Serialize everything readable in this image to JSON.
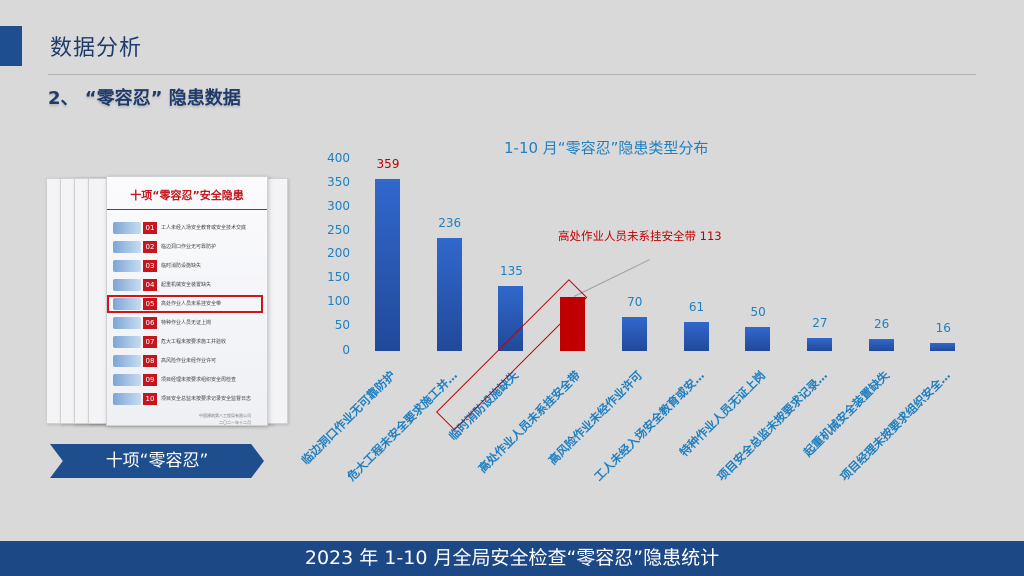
{
  "header": {
    "page_title": "数据分析",
    "section_title": "2、 “零容忍” 隐患数据",
    "accent_color": "#1f4e8f"
  },
  "poster": {
    "title": "十项“零容忍”安全隐患",
    "items": [
      {
        "num": "01",
        "text": "工人未经入场安全教育或安全技术交底"
      },
      {
        "num": "02",
        "text": "临边洞口作业无可靠防护"
      },
      {
        "num": "03",
        "text": "临时消防设施缺失"
      },
      {
        "num": "04",
        "text": "起重机械安全装置缺失"
      },
      {
        "num": "05",
        "text": "高处作业人员未系挂安全带",
        "highlighted": true
      },
      {
        "num": "06",
        "text": "特种作业人员无证上岗"
      },
      {
        "num": "07",
        "text": "危大工程未按要求施工并验收"
      },
      {
        "num": "08",
        "text": "高风险作业未经作业许可"
      },
      {
        "num": "09",
        "text": "项目经理未按要求组织安全周检查"
      },
      {
        "num": "10",
        "text": "项目安全总监未按要求记录安全监督日志"
      }
    ],
    "footer_line1": "中国建筑第八工程局有限公司",
    "footer_line2": "二〇二一年十二月"
  },
  "banner": {
    "label": "十项“零容忍”"
  },
  "chart": {
    "title": "1-10 月“零容忍”隐患类型分布",
    "callout": "高处作业人员未系挂安全带  113",
    "y_ticks": [
      "400",
      "350",
      "300",
      "250",
      "200",
      "150",
      "100",
      "50",
      "0"
    ]
  },
  "chart_data": {
    "type": "bar",
    "title": "1-10 月“零容忍”隐患类型分布",
    "xlabel": "",
    "ylabel": "",
    "ylim": [
      0,
      400
    ],
    "yticks": [
      0,
      50,
      100,
      150,
      200,
      250,
      300,
      350,
      400
    ],
    "grid": false,
    "legend": null,
    "categories": [
      "临边洞口作业无可靠防护",
      "危大工程未安全要求施工并…",
      "临时消防设施缺失",
      "高处作业人员未系挂安全带",
      "高风险作业未经作业许可",
      "工人未经入场安全教育或安…",
      "特种作业人员无证上岗",
      "项目安全总监未按要求记录…",
      "起重机械安全装置缺失",
      "项目经理未按要求组织安全…"
    ],
    "values": [
      359,
      236,
      135,
      113,
      70,
      61,
      50,
      27,
      26,
      16
    ],
    "value_labels": [
      "359",
      "236",
      "135",
      "",
      "70",
      "61",
      "50",
      "27",
      "26",
      "16"
    ],
    "highlight_index": 3,
    "annotations": [
      {
        "text": "高处作业人员未系挂安全带  113",
        "target_index": 3,
        "color": "#c00000"
      }
    ],
    "colors": {
      "bar": "#2b5cb8",
      "highlight": "#c00000",
      "axis_text": "#1f7fc0",
      "first_label": "#c00000"
    }
  },
  "footer": {
    "text": "2023 年 1-10 月全局安全检查“零容忍”隐患统计",
    "color": "#1d4886"
  }
}
